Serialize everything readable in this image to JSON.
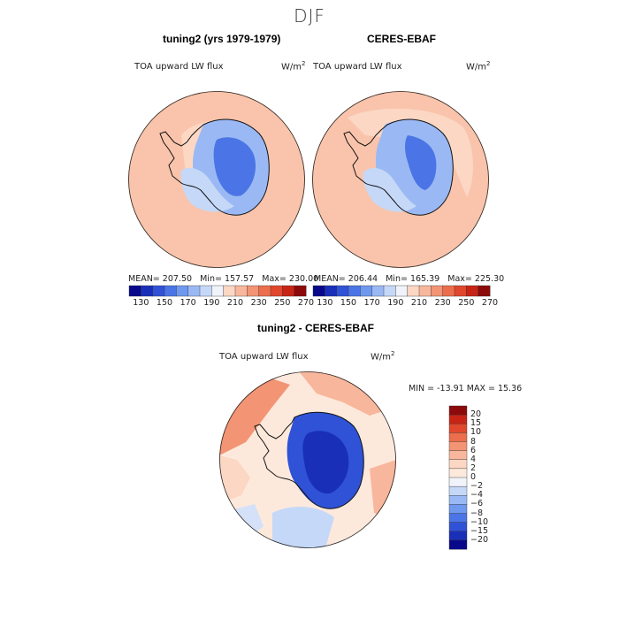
{
  "figure": {
    "season": "DJF"
  },
  "panels": {
    "left": {
      "title": "tuning2 (yrs 1979-1979)",
      "variable": "TOA upward LW flux",
      "units_base": "W/m",
      "units_exp": "2",
      "stats": {
        "mean": "207.50",
        "min": "157.57",
        "max": "230.00"
      }
    },
    "right": {
      "title": "CERES-EBAF",
      "variable": "TOA upward LW flux",
      "units_base": "W/m",
      "units_exp": "2",
      "stats": {
        "mean": "206.44",
        "min": "165.39",
        "max": "225.30"
      }
    },
    "diff": {
      "title": "tuning2 - CERES-EBAF",
      "variable": "TOA upward LW flux",
      "units_base": "W/m",
      "units_exp": "2",
      "stats_text": "MIN = -13.91  MAX =  15.36"
    }
  },
  "stat_labels": {
    "mean": "MEAN=",
    "min": "Min=",
    "max": "Max="
  },
  "chart_data": [
    {
      "type": "heatmap",
      "projection": "south-polar-stereographic",
      "colorbar": {
        "orientation": "horizontal",
        "tick_labels": [
          "130",
          "150",
          "170",
          "190",
          "210",
          "230",
          "250",
          "270"
        ],
        "colors": [
          "#08088a",
          "#1a2fb8",
          "#2f52d6",
          "#4b75e6",
          "#6f98ef",
          "#9ab9f4",
          "#c5d8f8",
          "#f1f3fb",
          "#fbd7c4",
          "#f8b79c",
          "#f39474",
          "#ec6e4c",
          "#e0472c",
          "#c82416",
          "#8c0a0a"
        ]
      }
    },
    {
      "type": "heatmap",
      "projection": "south-polar-stereographic",
      "colorbar": {
        "orientation": "vertical",
        "tick_labels": [
          "20",
          "15",
          "10",
          "8",
          "6",
          "4",
          "2",
          "0",
          "−2",
          "−4",
          "−6",
          "−8",
          "−10",
          "−15",
          "−20"
        ],
        "colors": [
          "#8c0a0a",
          "#c82416",
          "#e0472c",
          "#ec6e4c",
          "#f39474",
          "#f8b79c",
          "#fbd7c4",
          "#fde9dc",
          "#f1f3fb",
          "#c5d8f8",
          "#9ab9f4",
          "#6f98ef",
          "#4b75e6",
          "#2f52d6",
          "#1a2fb8",
          "#08088a"
        ]
      }
    }
  ]
}
